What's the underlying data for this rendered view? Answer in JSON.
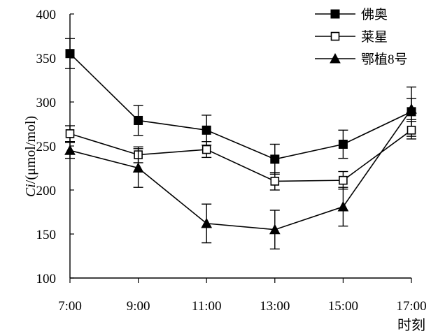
{
  "chart_data": {
    "type": "line",
    "x": [
      "7:00",
      "9:00",
      "11:00",
      "13:00",
      "15:00",
      "17:00"
    ],
    "xlabel": "时刻",
    "ylabel_italic": "Ci",
    "ylabel_unit": "/(μmol/mol)",
    "ylim": [
      100,
      400
    ],
    "yticks": [
      100,
      150,
      200,
      250,
      300,
      350,
      400
    ],
    "grid": false,
    "legend_position": "top-right",
    "series": [
      {
        "name": "佛奥",
        "marker": "filled-square",
        "values": [
          355,
          279,
          268,
          235,
          252,
          289
        ],
        "errors": [
          17,
          17,
          17,
          17,
          16,
          28
        ]
      },
      {
        "name": "莱星",
        "marker": "open-square",
        "values": [
          264,
          240,
          246,
          210,
          211,
          268
        ],
        "errors": [
          9,
          9,
          9,
          10,
          10,
          10
        ]
      },
      {
        "name": "鄂植8号",
        "marker": "filled-triangle",
        "values": [
          245,
          225,
          162,
          155,
          181,
          292
        ],
        "errors": [
          9,
          22,
          22,
          22,
          22,
          12
        ]
      }
    ]
  }
}
